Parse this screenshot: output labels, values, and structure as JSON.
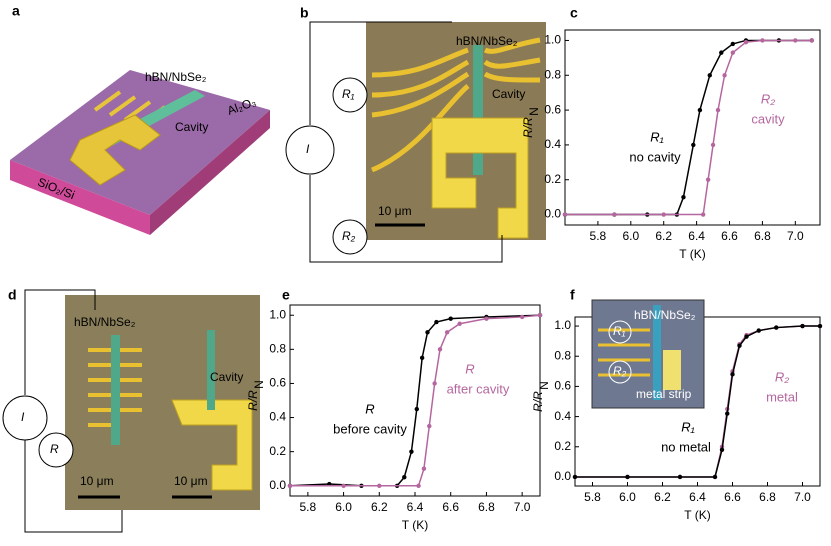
{
  "panel_labels": [
    "a",
    "b",
    "c",
    "d",
    "e",
    "f"
  ],
  "panel_a": {
    "material": "hBN/NbSe₂",
    "cavity": "Cavity",
    "layer": "Al₂O₃",
    "substrate": "SiO₂/Si"
  },
  "panel_b": {
    "material": "hBN/NbSe₂",
    "cavity": "Cavity",
    "r1": "R₁",
    "r2": "R₂",
    "current": "I",
    "scale": "10 μm"
  },
  "panel_d": {
    "material": "hBN/NbSe₂",
    "cavity": "Cavity",
    "current": "I",
    "r": "R",
    "scale_left": "10 μm",
    "scale_right": "10 μm"
  },
  "inset_f": {
    "r1": "R₁",
    "r2": "R₂",
    "material": "hBN/NbSe₂",
    "strip": "metal strip"
  },
  "chart_data": [
    {
      "type": "line",
      "xlabel": "T (K)",
      "ylabel": "R/R",
      "ylabel_sub": "N",
      "xlim": [
        5.6,
        7.15
      ],
      "ylim": [
        -0.06,
        1.06
      ],
      "xticks": [
        5.8,
        {
          "value": 6,
          "label": "6.0"
        },
        6.2,
        6.4,
        6.6,
        6.8,
        {
          "value": 7,
          "label": "7.0"
        }
      ],
      "yticks": [
        {
          "value": 0,
          "label": "0.0"
        },
        0.2,
        0.4,
        0.6,
        0.8,
        {
          "value": 1,
          "label": "1.0"
        }
      ],
      "series": [
        {
          "name": "R₁",
          "description": "no cavity",
          "color": "#000000",
          "x": [
            5.6,
            5.9,
            6.1,
            6.28,
            6.32,
            6.38,
            6.42,
            6.48,
            6.55,
            6.62,
            6.7,
            6.9,
            7.1
          ],
          "values": [
            0,
            0,
            0,
            0,
            0.1,
            0.4,
            0.6,
            0.8,
            0.93,
            0.98,
            1,
            1,
            1
          ]
        },
        {
          "name": "R₂",
          "description": "cavity",
          "color": "#b5669e",
          "x": [
            5.6,
            5.9,
            6.2,
            6.44,
            6.47,
            6.5,
            6.53,
            6.57,
            6.62,
            6.7,
            6.8,
            7.0,
            7.1
          ],
          "values": [
            0,
            0,
            0,
            0,
            0.2,
            0.4,
            0.6,
            0.8,
            0.93,
            0.99,
            1,
            1,
            1
          ]
        }
      ]
    },
    {
      "type": "line",
      "xlabel": "T (K)",
      "ylabel": "R/R",
      "ylabel_sub": "N",
      "xlim": [
        5.7,
        7.1
      ],
      "ylim": [
        -0.06,
        1.06
      ],
      "xticks": [
        5.8,
        {
          "value": 6,
          "label": "6.0"
        },
        6.2,
        6.4,
        6.6,
        6.8,
        {
          "value": 7,
          "label": "7.0"
        }
      ],
      "yticks": [
        {
          "value": 0,
          "label": "0.0"
        },
        0.2,
        0.4,
        0.6,
        0.8,
        {
          "value": 1,
          "label": "1.0"
        }
      ],
      "series": [
        {
          "name": "R",
          "description": "before cavity",
          "color": "#000000",
          "x": [
            5.7,
            5.92,
            6.1,
            6.3,
            6.34,
            6.38,
            6.41,
            6.44,
            6.47,
            6.52,
            6.6,
            6.8,
            7.1
          ],
          "values": [
            0,
            0.01,
            0,
            0,
            0.05,
            0.2,
            0.45,
            0.75,
            0.9,
            0.96,
            0.98,
            0.99,
            1
          ]
        },
        {
          "name": "R",
          "description": "after cavity",
          "color": "#b5669e",
          "x": [
            5.7,
            6.0,
            6.2,
            6.42,
            6.45,
            6.48,
            6.51,
            6.54,
            6.58,
            6.65,
            6.8,
            7.0,
            7.1
          ],
          "values": [
            0,
            0,
            0,
            0,
            0.1,
            0.35,
            0.6,
            0.8,
            0.9,
            0.95,
            0.98,
            0.99,
            1
          ]
        }
      ]
    },
    {
      "type": "line",
      "xlabel": "T (K)",
      "ylabel": "R/R",
      "ylabel_sub": "N",
      "xlim": [
        5.7,
        7.1
      ],
      "ylim": [
        -0.06,
        1.06
      ],
      "xticks": [
        5.8,
        {
          "value": 6,
          "label": "6.0"
        },
        6.2,
        6.4,
        6.6,
        6.8,
        {
          "value": 7,
          "label": "7.0"
        }
      ],
      "yticks": [
        {
          "value": 0,
          "label": "0.0"
        },
        0.2,
        0.4,
        0.6,
        0.8,
        {
          "value": 1,
          "label": "1.0"
        }
      ],
      "series": [
        {
          "name": "R₂",
          "description": "metal",
          "color": "#b5669e",
          "x": [
            5.7,
            6.0,
            6.3,
            6.5,
            6.54,
            6.57,
            6.6,
            6.64,
            6.68,
            6.75,
            6.85,
            7.0,
            7.1
          ],
          "values": [
            0,
            0,
            0,
            0,
            0.2,
            0.45,
            0.7,
            0.88,
            0.94,
            0.97,
            0.99,
            1,
            1
          ]
        },
        {
          "name": "R₁",
          "description": "no metal",
          "color": "#000000",
          "x": [
            5.7,
            6.0,
            6.3,
            6.5,
            6.54,
            6.57,
            6.6,
            6.64,
            6.68,
            6.75,
            6.85,
            7.0,
            7.1
          ],
          "values": [
            0,
            0,
            0,
            0,
            0.18,
            0.42,
            0.68,
            0.87,
            0.93,
            0.97,
            0.99,
            1,
            1
          ]
        }
      ]
    }
  ]
}
